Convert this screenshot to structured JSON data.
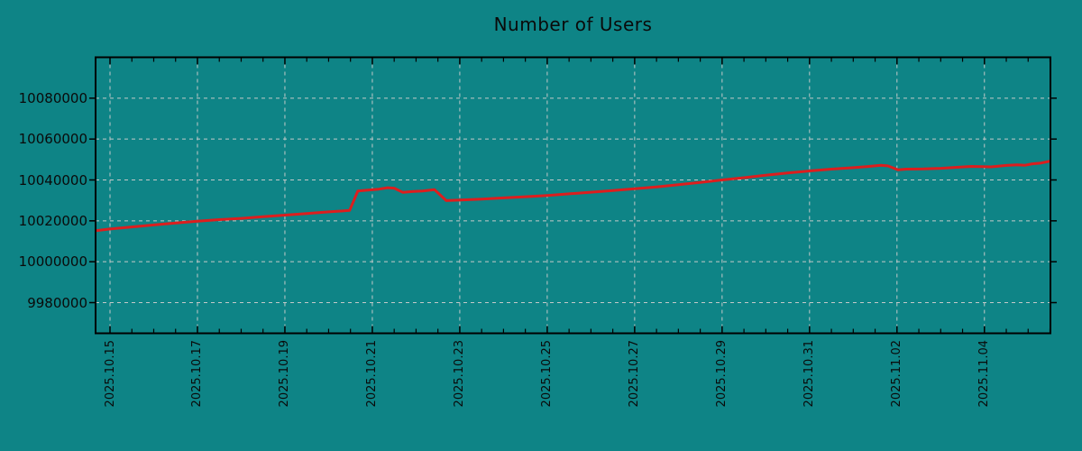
{
  "chart_data": {
    "type": "line",
    "title": "Number of Users",
    "legend": "none",
    "grid": "dashed",
    "x_unit": "days since 2025.10.15",
    "x_range": [
      -0.33,
      21.51
    ],
    "y_range": [
      9965000,
      10100000
    ],
    "y_ticks": [
      9980000,
      10000000,
      10020000,
      10040000,
      10060000,
      10080000
    ],
    "x_ticks": [
      {
        "t": 0,
        "label": "2025.10.15"
      },
      {
        "t": 2,
        "label": "2025.10.17"
      },
      {
        "t": 4,
        "label": "2025.10.19"
      },
      {
        "t": 6,
        "label": "2025.10.21"
      },
      {
        "t": 8,
        "label": "2025.10.23"
      },
      {
        "t": 10,
        "label": "2025.10.25"
      },
      {
        "t": 12,
        "label": "2025.10.27"
      },
      {
        "t": 14,
        "label": "2025.10.29"
      },
      {
        "t": 16,
        "label": "2025.10.31"
      },
      {
        "t": 18,
        "label": "2025.11.02"
      },
      {
        "t": 20,
        "label": "2025.11.04"
      }
    ],
    "x_minor_interval": 0.5,
    "colors": {
      "background": "#0e8486",
      "line": "#dc1e1e",
      "grid": "#c4c9c9",
      "frame": "#000000",
      "text": "#0a0a0a"
    },
    "series": [
      {
        "color": "#dc1e1e",
        "points": [
          [
            -0.33,
            10015200
          ],
          [
            0.0,
            10016000
          ],
          [
            0.5,
            10017000
          ],
          [
            1.0,
            10018000
          ],
          [
            1.5,
            10018900
          ],
          [
            2.0,
            10019800
          ],
          [
            2.5,
            10020600
          ],
          [
            3.0,
            10021200
          ],
          [
            3.5,
            10022000
          ],
          [
            4.0,
            10022800
          ],
          [
            4.5,
            10023600
          ],
          [
            5.0,
            10024400
          ],
          [
            5.48,
            10025100
          ],
          [
            5.67,
            10034600
          ],
          [
            5.9,
            10035000
          ],
          [
            6.15,
            10035500
          ],
          [
            6.35,
            10036200
          ],
          [
            6.5,
            10036000
          ],
          [
            6.7,
            10033900
          ],
          [
            6.9,
            10034300
          ],
          [
            7.15,
            10034600
          ],
          [
            7.42,
            10035300
          ],
          [
            7.69,
            10029900
          ],
          [
            7.96,
            10030100
          ],
          [
            8.5,
            10030600
          ],
          [
            9.0,
            10031200
          ],
          [
            9.5,
            10031800
          ],
          [
            10.0,
            10032400
          ],
          [
            10.5,
            10033200
          ],
          [
            11.0,
            10034000
          ],
          [
            11.5,
            10034800
          ],
          [
            12.0,
            10035700
          ],
          [
            12.5,
            10036600
          ],
          [
            13.0,
            10037700
          ],
          [
            13.5,
            10038800
          ],
          [
            14.0,
            10040000
          ],
          [
            14.5,
            10041100
          ],
          [
            15.0,
            10042300
          ],
          [
            15.5,
            10043400
          ],
          [
            16.0,
            10044400
          ],
          [
            16.5,
            10045300
          ],
          [
            17.0,
            10046000
          ],
          [
            17.3,
            10046500
          ],
          [
            17.63,
            10047200
          ],
          [
            17.79,
            10046900
          ],
          [
            18.02,
            10045000
          ],
          [
            18.21,
            10045300
          ],
          [
            18.6,
            10045400
          ],
          [
            19.0,
            10045700
          ],
          [
            19.4,
            10046200
          ],
          [
            19.7,
            10046600
          ],
          [
            19.95,
            10046500
          ],
          [
            20.15,
            10046400
          ],
          [
            20.5,
            10047100
          ],
          [
            20.75,
            10047400
          ],
          [
            20.93,
            10047200
          ],
          [
            21.1,
            10047900
          ],
          [
            21.3,
            10048300
          ],
          [
            21.51,
            10049200
          ]
        ]
      }
    ]
  }
}
